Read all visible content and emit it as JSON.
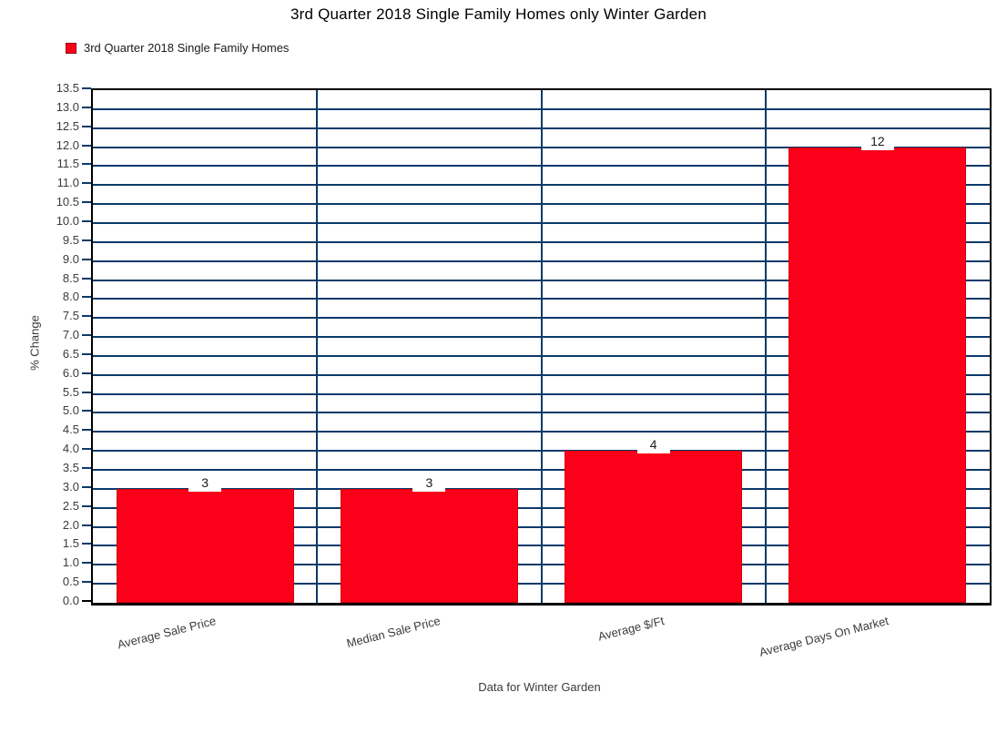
{
  "title": "3rd Quarter 2018 Single Family Homes only Winter Garden",
  "legend": {
    "label": "3rd Quarter 2018 Single Family Homes",
    "swatch_color": "#FA0019"
  },
  "chart_data": {
    "type": "bar",
    "title": "3rd Quarter 2018 Single Family Homes only Winter Garden",
    "categories": [
      "Average Sale Price",
      "Median Sale Price",
      "Average $/Ft",
      "Average Days On Market"
    ],
    "series": [
      {
        "name": "3rd Quarter 2018 Single Family Homes",
        "values": [
          3,
          3,
          4,
          12
        ]
      }
    ],
    "bar_value_labels": [
      "3",
      "3",
      "4",
      "12"
    ],
    "xlabel": "Data for Winter Garden",
    "ylabel": "% Change",
    "ylim": [
      0,
      13.5
    ],
    "ytick_step": 0.5,
    "ytick_decimals": 1,
    "grid": "horizontal gridlines at every 0.5 plus vertical category separators",
    "legend_position": "top-left",
    "colors": {
      "bar_fill": "#FA0019",
      "bar_border": "#D1000F",
      "gridline": "#0B3A6A",
      "axis_frame": "#000000",
      "tick_text": "#3b3b3b"
    }
  }
}
